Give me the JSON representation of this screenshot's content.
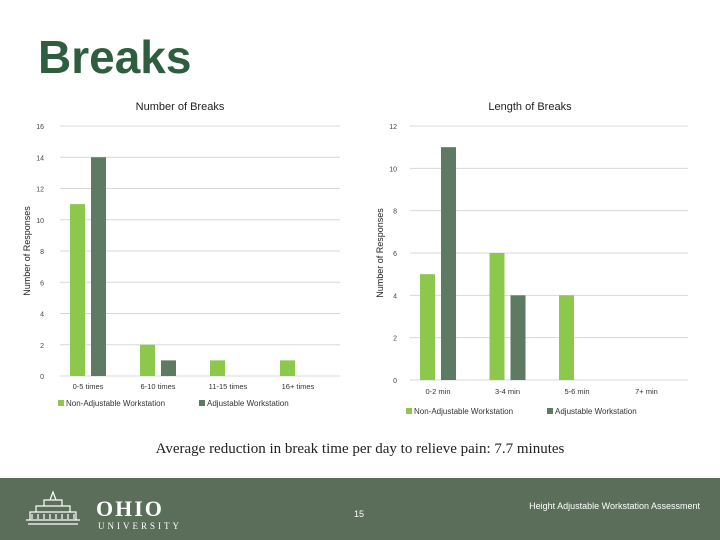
{
  "slide": {
    "title": "Breaks",
    "summary": "Average reduction in break time per day to relieve pain:  7.7 minutes",
    "page_number": "15",
    "footer_text": "Height Adjustable Workstation Assessment",
    "logo_word": "OHIO",
    "logo_sub": "UNIVERSITY"
  },
  "colors": {
    "non_adjustable": "#8cc84b",
    "adjustable": "#5f7a63",
    "footer": "#5a6e5a",
    "title": "#2e5e3e"
  },
  "chart_data": [
    {
      "type": "bar",
      "title": "Number of Breaks",
      "ylabel": "Number of Responses",
      "xlabel": "",
      "ylim": [
        0,
        16
      ],
      "yticks": [
        "0",
        "2",
        "4",
        "6",
        "8",
        "10",
        "12",
        "14",
        "16"
      ],
      "categories": [
        "0-5 times",
        "6-10 times",
        "11-15 times",
        "16+ times"
      ],
      "series": [
        {
          "name": "Non-Adjustable Workstation",
          "values": [
            11,
            2,
            1,
            1
          ]
        },
        {
          "name": "Adjustable Workstation",
          "values": [
            14,
            1,
            0,
            0
          ]
        }
      ],
      "grid": true,
      "legend": "bottom"
    },
    {
      "type": "bar",
      "title": "Length of Breaks",
      "ylabel": "Number of Responses",
      "xlabel": "",
      "ylim": [
        0,
        12
      ],
      "yticks": [
        "0",
        "2",
        "4",
        "6",
        "8",
        "10",
        "12"
      ],
      "categories": [
        "0-2 min",
        "3-4 min",
        "5-6 min",
        "7+ min"
      ],
      "series": [
        {
          "name": "Non-Adjustable Workstation",
          "values": [
            5,
            6,
            4,
            0
          ]
        },
        {
          "name": "Adjustable Workstation",
          "values": [
            11,
            4,
            0,
            0
          ]
        }
      ],
      "grid": true,
      "legend": "bottom"
    }
  ]
}
